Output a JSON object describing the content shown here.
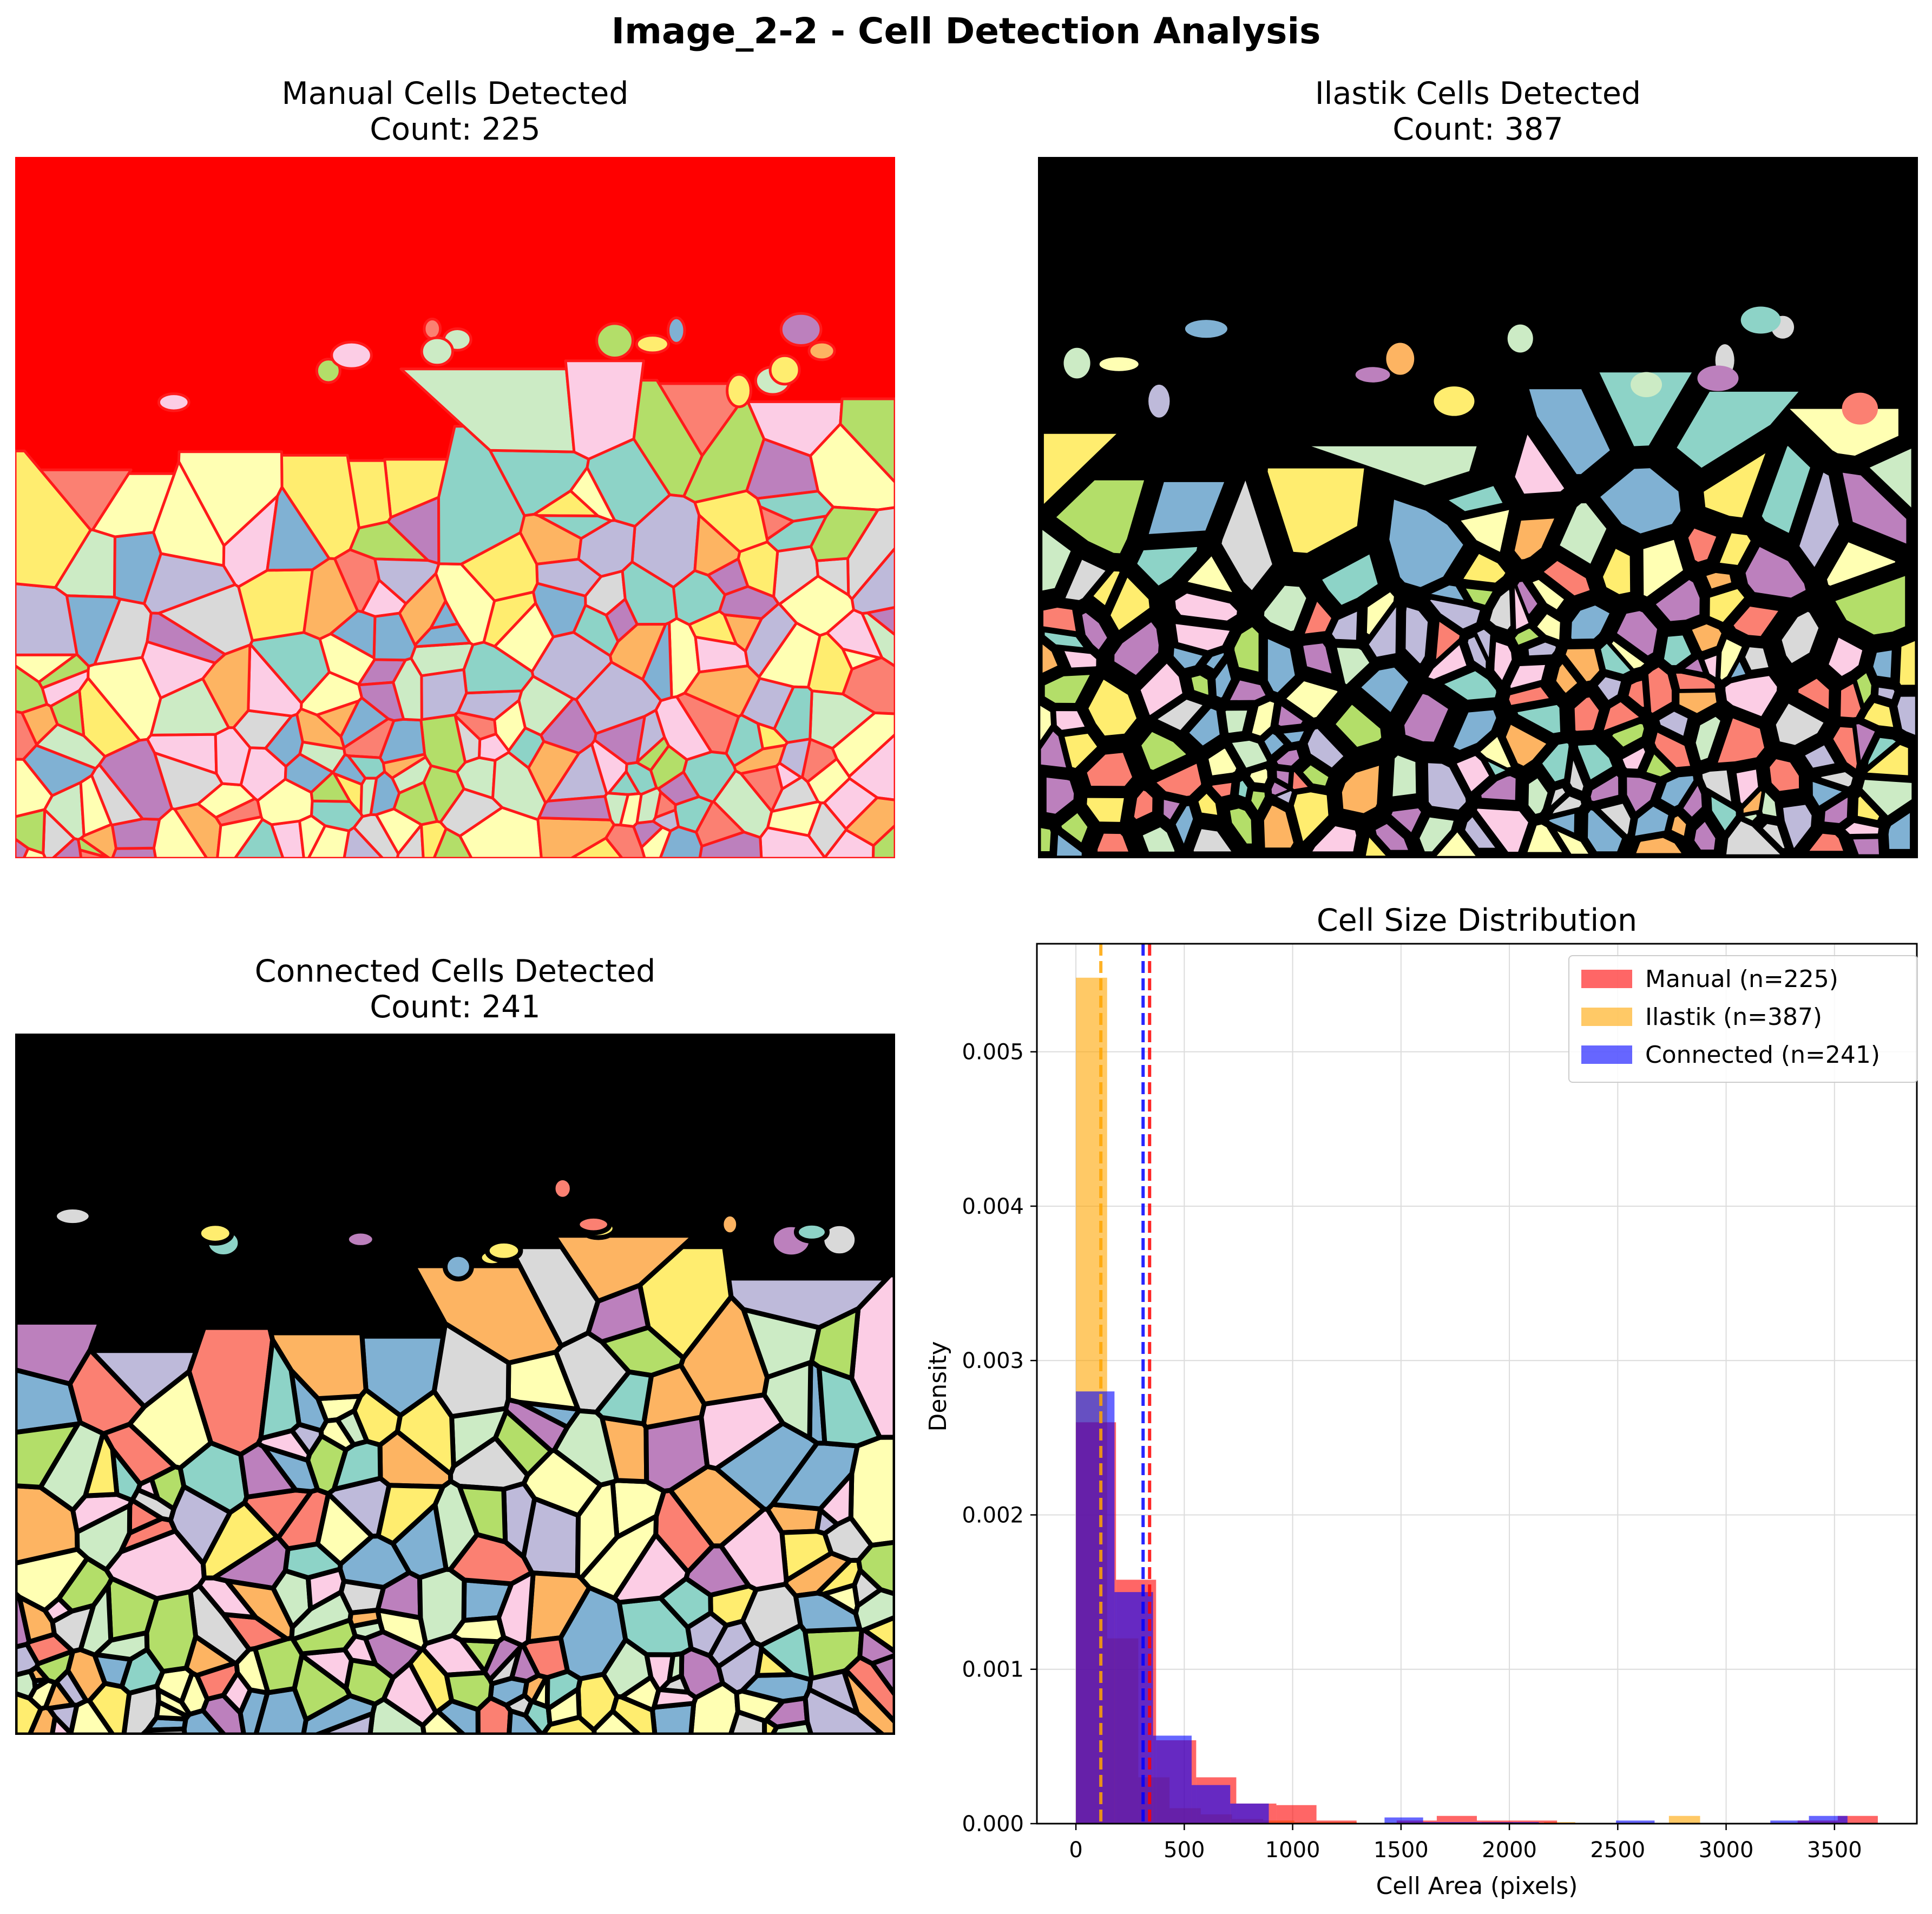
{
  "suptitle": "Image_2-2 - Cell Detection Analysis",
  "panels": {
    "manual": {
      "title_line1": "Manual Cells Detected",
      "title_line2": "Count: 225",
      "background": "#ff0000",
      "outline": "#ff1a1a"
    },
    "ilastik": {
      "title_line1": "Ilastik Cells Detected",
      "title_line2": "Count: 387",
      "background": "#000000"
    },
    "connected": {
      "title_line1": "Connected Cells Detected",
      "title_line2": "Count: 241",
      "background": "#000000",
      "outline": "#000000"
    }
  },
  "palette": [
    "#8dd3c7",
    "#ffffb3",
    "#bebada",
    "#fb8072",
    "#80b1d3",
    "#fdb462",
    "#b3de69",
    "#fccde5",
    "#d9d9d9",
    "#bc80bd",
    "#ccebc5",
    "#ffed6f"
  ],
  "chart_data": {
    "type": "histogram",
    "title": "Cell Size Distribution",
    "xlabel": "Cell Area (pixels)",
    "ylabel": "Density",
    "xlim": [
      -180,
      3880
    ],
    "ylim": [
      0,
      0.0057
    ],
    "xticks": [
      0,
      500,
      1000,
      1500,
      2000,
      2500,
      3000,
      3500
    ],
    "yticks": [
      0.0,
      0.001,
      0.002,
      0.003,
      0.004,
      0.005
    ],
    "ytick_labels": [
      "0.000",
      "0.001",
      "0.002",
      "0.003",
      "0.004",
      "0.005"
    ],
    "grid": true,
    "legend_position": "upper right",
    "series": [
      {
        "name": "Manual (n=225)",
        "color": "#ff0000",
        "alpha": 0.6,
        "bin_edges": [
          0,
          185,
          370,
          555,
          740,
          925,
          1110,
          1295,
          1480,
          1665,
          1850,
          2035,
          2220,
          2405,
          2590,
          2775,
          2960,
          3145,
          3330,
          3515,
          3700
        ],
        "density": [
          0.0026,
          0.00158,
          0.00054,
          0.0003,
          0.00013,
          0.00012,
          2e-05,
          0.0,
          2e-05,
          5e-05,
          2e-05,
          2e-05,
          0.0,
          0.0,
          0.0,
          0.0,
          0.0,
          0.0,
          2e-05,
          5e-05
        ],
        "mean": 340
      },
      {
        "name": "Ilastik (n=387)",
        "color": "#ffa500",
        "alpha": 0.6,
        "bin_edges": [
          0,
          144,
          288,
          432,
          576,
          720,
          864,
          1008,
          1152,
          1296,
          1440,
          1584,
          1728,
          1872,
          2016,
          2160,
          2304,
          2448,
          2592,
          2736,
          2880
        ],
        "density": [
          0.00548,
          0.0012,
          0.0003,
          0.0001,
          6e-05,
          3e-05,
          2e-05,
          1e-05,
          1e-05,
          0.0,
          0.0,
          0.0,
          0.0,
          1e-05,
          0.0,
          1e-05,
          0.0,
          0.0,
          0.0,
          5e-05
        ],
        "mean": 115
      },
      {
        "name": "Connected (n=241)",
        "color": "#0000ff",
        "alpha": 0.6,
        "bin_edges": [
          0,
          178,
          356,
          534,
          712,
          890,
          1068,
          1246,
          1424,
          1602,
          1780,
          1958,
          2136,
          2314,
          2492,
          2670,
          2848,
          3026,
          3204,
          3382,
          3560
        ],
        "density": [
          0.0028,
          0.0015,
          0.00057,
          0.00025,
          0.00013,
          0.0,
          0.0,
          0.0,
          4e-05,
          1e-05,
          1e-05,
          1e-05,
          0.0,
          0.0,
          2e-05,
          0.0,
          0.0,
          0.0,
          2e-05,
          5e-05
        ],
        "mean": 310
      }
    ]
  }
}
